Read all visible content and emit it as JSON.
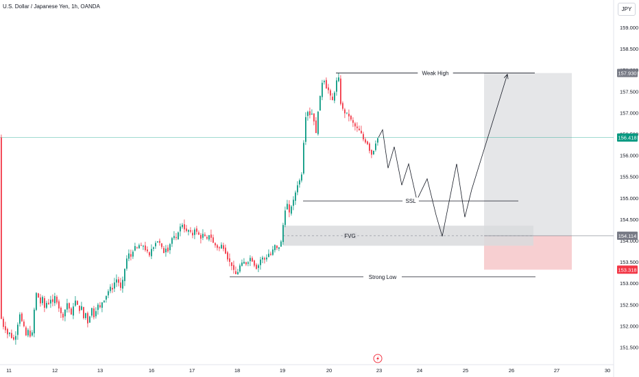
{
  "header": {
    "title": "U.S. Dollar / Japanese Yen, 1h, OANDA",
    "currency_button": "JPY"
  },
  "colors": {
    "up": "#089981",
    "down": "#f23645",
    "zone_gray": "#d9dadd",
    "target_gray": "#e5e6e8",
    "stop_red": "#f7cfd1",
    "current_line": "#22ab94"
  },
  "chart_data": {
    "type": "candlestick",
    "title": "U.S. Dollar / Japanese Yen, 1h, OANDA",
    "ylim": [
      151.3,
      159.3
    ],
    "y_ticks": [
      "159.000",
      "158.500",
      "158.000",
      "157.500",
      "157.000",
      "156.500",
      "156.000",
      "155.500",
      "155.000",
      "154.500",
      "154.000",
      "153.500",
      "153.000",
      "152.500",
      "152.000",
      "151.500"
    ],
    "y_tick_values": [
      159.0,
      158.5,
      158.0,
      157.5,
      157.0,
      156.5,
      156.0,
      155.5,
      155.0,
      154.5,
      154.0,
      153.5,
      153.0,
      152.5,
      152.0,
      151.5
    ],
    "x_ticks": [
      "11",
      "12",
      "13",
      "16",
      "17",
      "18",
      "19",
      "20",
      "23",
      "24",
      "25",
      "26",
      "27",
      "30"
    ],
    "price_path": [
      [
        0,
        152.15
      ],
      [
        2,
        152.2
      ],
      [
        5,
        152.0
      ],
      [
        8,
        151.95
      ],
      [
        11,
        151.8
      ],
      [
        14,
        151.85
      ],
      [
        17,
        151.75
      ],
      [
        20,
        151.65
      ],
      [
        23,
        151.8
      ],
      [
        25,
        151.75
      ],
      [
        27,
        152.15
      ],
      [
        29,
        152.3
      ],
      [
        31,
        152.25
      ],
      [
        33,
        152.05
      ],
      [
        35,
        152.0
      ],
      [
        37,
        151.85
      ],
      [
        39,
        151.75
      ],
      [
        41,
        151.9
      ],
      [
        43,
        151.85
      ],
      [
        46,
        151.7
      ],
      [
        49,
        151.95
      ],
      [
        52,
        152.8
      ],
      [
        56,
        152.7
      ],
      [
        59,
        152.5
      ],
      [
        62,
        152.7
      ],
      [
        65,
        152.4
      ],
      [
        68,
        152.55
      ],
      [
        71,
        152.5
      ],
      [
        74,
        152.65
      ],
      [
        77,
        152.5
      ],
      [
        80,
        152.7
      ],
      [
        83,
        152.6
      ],
      [
        86,
        152.45
      ],
      [
        89,
        152.3
      ],
      [
        92,
        152.2
      ],
      [
        95,
        152.35
      ],
      [
        98,
        152.55
      ],
      [
        101,
        152.45
      ],
      [
        104,
        152.2
      ],
      [
        107,
        152.45
      ],
      [
        110,
        152.6
      ],
      [
        113,
        152.5
      ],
      [
        116,
        152.35
      ],
      [
        119,
        152.5
      ],
      [
        122,
        152.15
      ],
      [
        125,
        152.35
      ],
      [
        128,
        152.05
      ],
      [
        131,
        152.2
      ],
      [
        134,
        152.45
      ],
      [
        137,
        152.2
      ],
      [
        140,
        152.35
      ],
      [
        143,
        152.5
      ],
      [
        146,
        152.4
      ],
      [
        149,
        152.55
      ],
      [
        152,
        152.6
      ],
      [
        155,
        152.7
      ],
      [
        158,
        152.8
      ],
      [
        161,
        152.9
      ],
      [
        164,
        152.85
      ],
      [
        167,
        153.0
      ],
      [
        170,
        153.1
      ],
      [
        173,
        153.05
      ],
      [
        176,
        152.85
      ],
      [
        179,
        153.0
      ],
      [
        182,
        153.3
      ],
      [
        185,
        153.55
      ],
      [
        188,
        153.7
      ],
      [
        191,
        153.6
      ],
      [
        194,
        153.75
      ],
      [
        197,
        153.85
      ],
      [
        200,
        153.8
      ],
      [
        203,
        153.9
      ],
      [
        206,
        153.85
      ],
      [
        209,
        153.9
      ],
      [
        212,
        153.8
      ],
      [
        215,
        153.75
      ],
      [
        218,
        153.6
      ],
      [
        221,
        153.8
      ],
      [
        224,
        153.85
      ],
      [
        227,
        153.95
      ],
      [
        230,
        154.0
      ],
      [
        233,
        153.95
      ],
      [
        236,
        153.85
      ],
      [
        239,
        153.7
      ],
      [
        242,
        153.85
      ],
      [
        245,
        153.75
      ],
      [
        248,
        153.9
      ],
      [
        251,
        154.05
      ],
      [
        254,
        154.1
      ],
      [
        257,
        154.0
      ],
      [
        260,
        154.2
      ],
      [
        263,
        154.3
      ],
      [
        266,
        154.4
      ],
      [
        269,
        154.3
      ],
      [
        272,
        154.2
      ],
      [
        275,
        154.25
      ],
      [
        278,
        154.2
      ],
      [
        281,
        154.1
      ],
      [
        284,
        154.3
      ],
      [
        287,
        154.2
      ],
      [
        290,
        154.15
      ],
      [
        293,
        154.05
      ],
      [
        296,
        154.15
      ],
      [
        299,
        154.1
      ],
      [
        302,
        154.0
      ],
      [
        305,
        154.15
      ],
      [
        308,
        154.1
      ],
      [
        311,
        153.95
      ],
      [
        314,
        153.9
      ],
      [
        317,
        153.85
      ],
      [
        320,
        153.8
      ],
      [
        323,
        153.9
      ],
      [
        326,
        153.85
      ],
      [
        329,
        153.75
      ],
      [
        332,
        153.6
      ],
      [
        335,
        153.5
      ],
      [
        338,
        153.45
      ],
      [
        341,
        153.3
      ],
      [
        344,
        153.2
      ],
      [
        347,
        153.25
      ],
      [
        350,
        153.4
      ],
      [
        353,
        153.45
      ],
      [
        356,
        153.5
      ],
      [
        359,
        153.45
      ],
      [
        362,
        153.5
      ],
      [
        365,
        153.6
      ],
      [
        368,
        153.55
      ],
      [
        371,
        153.45
      ],
      [
        374,
        153.35
      ],
      [
        377,
        153.4
      ],
      [
        380,
        153.55
      ],
      [
        383,
        153.6
      ],
      [
        386,
        153.55
      ],
      [
        389,
        153.6
      ],
      [
        392,
        153.7
      ],
      [
        395,
        153.65
      ],
      [
        398,
        153.75
      ],
      [
        401,
        153.9
      ],
      [
        404,
        153.8
      ],
      [
        407,
        153.85
      ],
      [
        410,
        153.9
      ],
      [
        413,
        154.3
      ],
      [
        416,
        154.7
      ],
      [
        419,
        154.9
      ],
      [
        422,
        154.6
      ],
      [
        425,
        154.8
      ],
      [
        428,
        154.9
      ],
      [
        431,
        155.1
      ],
      [
        434,
        155.3
      ],
      [
        437,
        155.4
      ],
      [
        440,
        155.45
      ],
      [
        443,
        156.2
      ],
      [
        446,
        156.9
      ],
      [
        449,
        157.05
      ],
      [
        452,
        156.95
      ],
      [
        455,
        157.0
      ],
      [
        458,
        156.9
      ],
      [
        461,
        156.4
      ],
      [
        464,
        157.0
      ],
      [
        467,
        157.3
      ],
      [
        470,
        157.7
      ],
      [
        473,
        157.8
      ],
      [
        476,
        157.6
      ],
      [
        479,
        157.55
      ],
      [
        482,
        157.4
      ],
      [
        485,
        157.25
      ],
      [
        488,
        157.45
      ],
      [
        491,
        157.7
      ],
      [
        494,
        157.95
      ],
      [
        496,
        157.35
      ],
      [
        499,
        157.1
      ],
      [
        502,
        157.05
      ],
      [
        505,
        156.95
      ],
      [
        508,
        157.0
      ],
      [
        511,
        156.85
      ],
      [
        514,
        156.8
      ],
      [
        517,
        156.7
      ],
      [
        520,
        156.65
      ],
      [
        523,
        156.6
      ],
      [
        526,
        156.55
      ],
      [
        529,
        156.45
      ],
      [
        532,
        156.3
      ],
      [
        535,
        156.35
      ],
      [
        538,
        156.2
      ],
      [
        541,
        156.05
      ],
      [
        544,
        156.0
      ],
      [
        547,
        156.25
      ],
      [
        550,
        156.35
      ],
      [
        552,
        156.418
      ]
    ],
    "projection_path": [
      [
        552,
        156.418
      ],
      [
        558,
        156.6
      ],
      [
        566,
        155.7
      ],
      [
        575,
        156.2
      ],
      [
        586,
        155.3
      ],
      [
        596,
        155.8
      ],
      [
        608,
        154.95
      ],
      [
        623,
        155.45
      ],
      [
        636,
        154.6
      ],
      [
        645,
        154.1
      ],
      [
        666,
        155.8
      ],
      [
        678,
        154.55
      ],
      [
        688,
        155.2
      ],
      [
        740,
        157.9
      ]
    ],
    "current_price": 156.418,
    "current_price_label": "156.418",
    "levels": [
      {
        "label": "Weak High",
        "price": 157.93,
        "x_start": 490,
        "x_end": 780
      },
      {
        "label": "SSL",
        "price": 154.93,
        "x_start": 442,
        "x_end": 756
      },
      {
        "label": "Strong Low",
        "price": 153.15,
        "x_start": 335,
        "x_end": 781
      }
    ],
    "fvg": {
      "label": "FVG",
      "price_top": 154.35,
      "price_bottom": 153.88,
      "mid": 154.114,
      "x_start": 413,
      "x_end": 778
    },
    "position": {
      "entry": 154.114,
      "target": 157.93,
      "stop": 153.318,
      "entry_label": "154.114",
      "target_label": "157.930",
      "stop_label": "153.318",
      "x_start": 706,
      "x_end": 834
    },
    "grid": false,
    "legend": "none"
  }
}
